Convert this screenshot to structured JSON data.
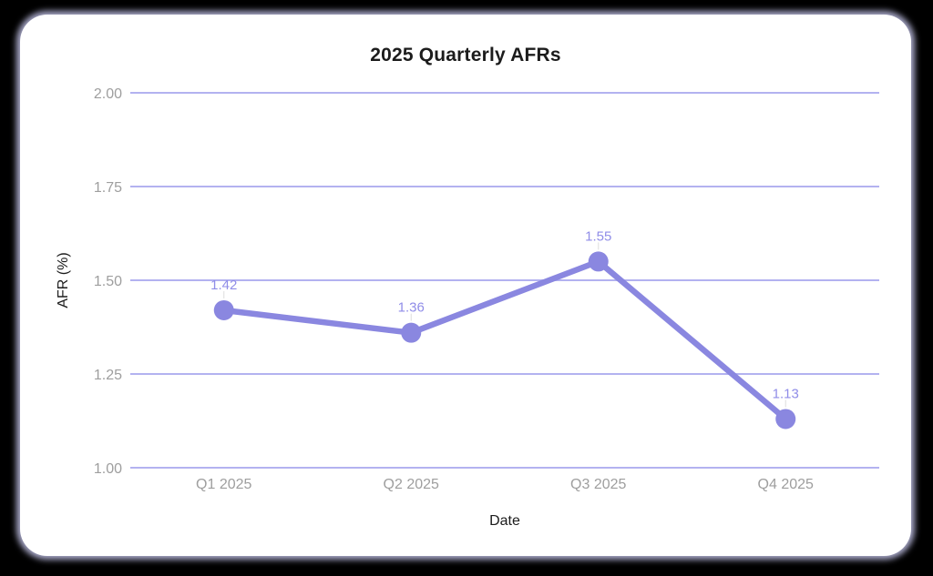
{
  "page": {
    "background": "#000000",
    "card_background": "#ffffff"
  },
  "chart_data": {
    "type": "line",
    "title": "2025 Quarterly AFRs",
    "xlabel": "Date",
    "ylabel": "AFR (%)",
    "categories": [
      "Q1 2025",
      "Q2 2025",
      "Q3 2025",
      "Q4 2025"
    ],
    "series": [
      {
        "name": "AFR",
        "values": [
          1.42,
          1.36,
          1.55,
          1.13
        ]
      }
    ],
    "value_labels": [
      "1.42",
      "1.36",
      "1.55",
      "1.13"
    ],
    "y_ticks": [
      "1.00",
      "1.25",
      "1.50",
      "1.75",
      "2.00"
    ],
    "ylim": [
      1.0,
      2.0
    ],
    "grid": true,
    "legend_position": "none",
    "colors": {
      "line": "#8a87e0",
      "point": "#8a87e0",
      "grid": "#b3b2f0",
      "tick_label": "#9e9e9e",
      "data_label": "#908de8",
      "axis_label": "#1c1c1c",
      "leader_line": "#dddddd"
    }
  }
}
